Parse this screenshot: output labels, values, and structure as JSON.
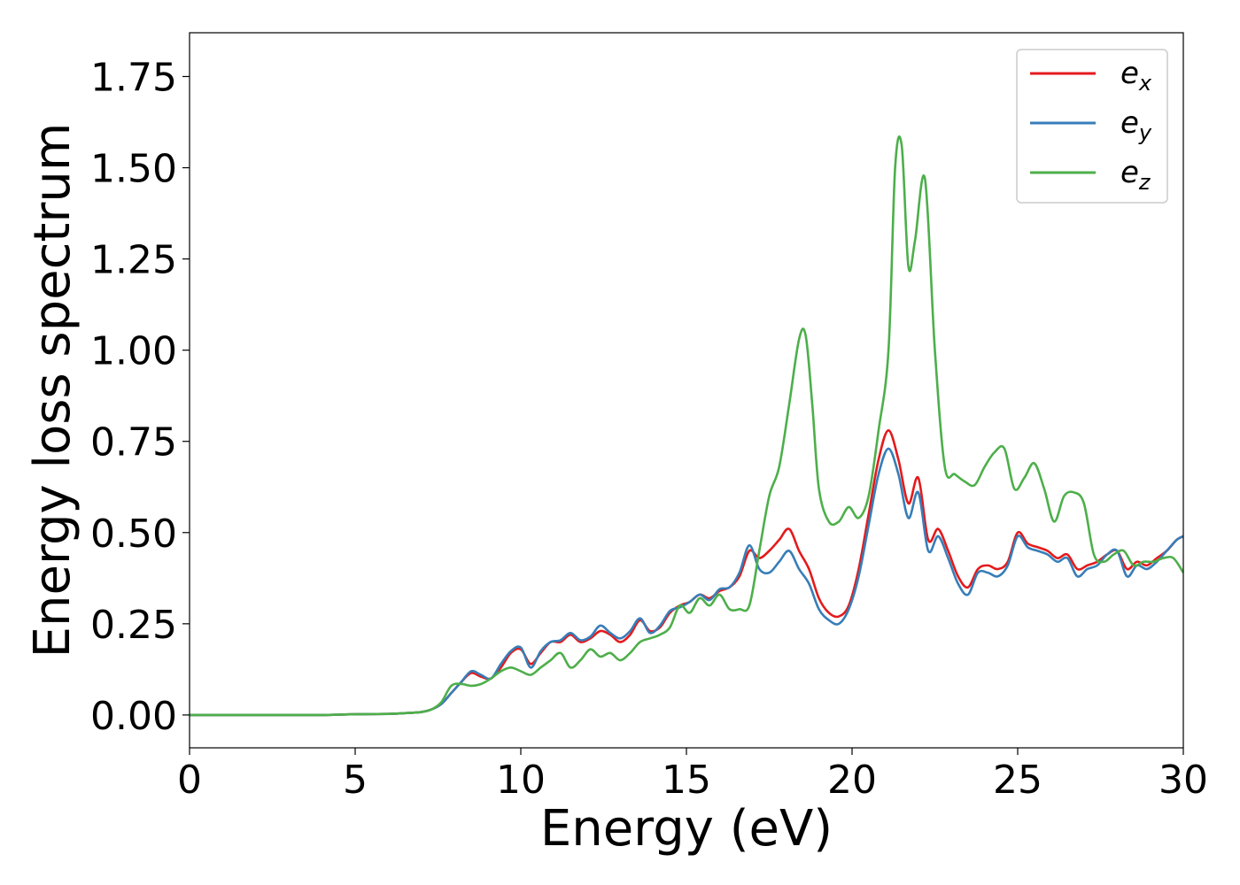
{
  "chart_data": {
    "type": "line",
    "title": "",
    "xlabel": "Energy (eV)",
    "ylabel": "Energy loss spectrum",
    "xlim": [
      0,
      30
    ],
    "ylim": [
      -0.09,
      1.87
    ],
    "xticks": [
      "0",
      "5",
      "10",
      "15",
      "20",
      "25",
      "30"
    ],
    "yticks": [
      "0.00",
      "0.25",
      "0.50",
      "0.75",
      "1.00",
      "1.25",
      "1.50",
      "1.75"
    ],
    "grid": false,
    "legend_position": "top-right",
    "series": [
      {
        "name": "e",
        "subscript": "x",
        "color": "#e41a1c",
        "x": [
          0,
          1,
          2,
          3,
          4,
          5,
          6,
          6.5,
          7.0,
          7.3,
          7.6,
          7.9,
          8.2,
          8.5,
          8.8,
          9.1,
          9.4,
          9.7,
          10.0,
          10.3,
          10.6,
          10.9,
          11.2,
          11.5,
          11.8,
          12.1,
          12.4,
          12.7,
          13.0,
          13.3,
          13.6,
          13.9,
          14.2,
          14.5,
          14.8,
          15.1,
          15.4,
          15.7,
          16.0,
          16.3,
          16.6,
          16.9,
          17.2,
          17.5,
          17.8,
          18.1,
          18.4,
          18.7,
          19.0,
          19.3,
          19.6,
          19.9,
          20.2,
          20.5,
          20.8,
          21.1,
          21.4,
          21.7,
          22.0,
          22.3,
          22.6,
          22.9,
          23.2,
          23.5,
          23.8,
          24.1,
          24.4,
          24.7,
          25.0,
          25.3,
          25.6,
          25.9,
          26.2,
          26.5,
          26.8,
          27.1,
          27.4,
          27.7,
          28.0,
          28.3,
          28.6,
          28.9,
          29.2,
          29.5,
          29.8,
          30
        ],
        "y": [
          0,
          0,
          0,
          0,
          0,
          0.002,
          0.003,
          0.005,
          0.008,
          0.015,
          0.03,
          0.06,
          0.09,
          0.115,
          0.105,
          0.1,
          0.13,
          0.17,
          0.18,
          0.14,
          0.17,
          0.2,
          0.2,
          0.22,
          0.2,
          0.21,
          0.23,
          0.22,
          0.2,
          0.22,
          0.26,
          0.23,
          0.24,
          0.28,
          0.3,
          0.31,
          0.33,
          0.32,
          0.34,
          0.35,
          0.38,
          0.45,
          0.43,
          0.45,
          0.48,
          0.51,
          0.45,
          0.4,
          0.32,
          0.28,
          0.27,
          0.3,
          0.4,
          0.55,
          0.7,
          0.78,
          0.7,
          0.58,
          0.65,
          0.48,
          0.51,
          0.45,
          0.38,
          0.35,
          0.4,
          0.41,
          0.4,
          0.42,
          0.5,
          0.47,
          0.46,
          0.45,
          0.43,
          0.44,
          0.4,
          0.41,
          0.42,
          0.44,
          0.45,
          0.4,
          0.42,
          0.41,
          0.43,
          0.45,
          0.48,
          0.49
        ]
      },
      {
        "name": "e",
        "subscript": "y",
        "color": "#377eb8",
        "x": [
          0,
          1,
          2,
          3,
          4,
          5,
          6,
          6.5,
          7.0,
          7.3,
          7.6,
          7.9,
          8.2,
          8.5,
          8.8,
          9.1,
          9.4,
          9.7,
          10.0,
          10.3,
          10.6,
          10.9,
          11.2,
          11.5,
          11.8,
          12.1,
          12.4,
          12.7,
          13.0,
          13.3,
          13.6,
          13.9,
          14.2,
          14.5,
          14.8,
          15.1,
          15.4,
          15.7,
          16.0,
          16.3,
          16.6,
          16.9,
          17.2,
          17.5,
          17.8,
          18.1,
          18.4,
          18.7,
          19.0,
          19.3,
          19.6,
          19.9,
          20.2,
          20.5,
          20.8,
          21.1,
          21.4,
          21.7,
          22.0,
          22.3,
          22.6,
          22.9,
          23.2,
          23.5,
          23.8,
          24.1,
          24.4,
          24.7,
          25.0,
          25.3,
          25.6,
          25.9,
          26.2,
          26.5,
          26.8,
          27.1,
          27.4,
          27.7,
          28.0,
          28.3,
          28.6,
          28.9,
          29.2,
          29.5,
          29.8,
          30
        ],
        "y": [
          0,
          0,
          0,
          0,
          0,
          0.002,
          0.003,
          0.005,
          0.008,
          0.015,
          0.03,
          0.06,
          0.09,
          0.12,
          0.11,
          0.1,
          0.14,
          0.175,
          0.185,
          0.13,
          0.175,
          0.2,
          0.205,
          0.225,
          0.205,
          0.215,
          0.245,
          0.225,
          0.21,
          0.23,
          0.265,
          0.225,
          0.245,
          0.285,
          0.295,
          0.31,
          0.33,
          0.315,
          0.345,
          0.35,
          0.39,
          0.465,
          0.4,
          0.39,
          0.42,
          0.45,
          0.4,
          0.36,
          0.29,
          0.26,
          0.25,
          0.29,
          0.38,
          0.52,
          0.66,
          0.73,
          0.66,
          0.54,
          0.61,
          0.45,
          0.49,
          0.43,
          0.36,
          0.33,
          0.39,
          0.39,
          0.38,
          0.41,
          0.49,
          0.46,
          0.45,
          0.44,
          0.42,
          0.43,
          0.38,
          0.4,
          0.41,
          0.44,
          0.45,
          0.38,
          0.41,
          0.4,
          0.42,
          0.45,
          0.48,
          0.49
        ]
      },
      {
        "name": "e",
        "subscript": "z",
        "color": "#4daf4a",
        "x": [
          0,
          1,
          2,
          3,
          4,
          5,
          6,
          6.5,
          7.0,
          7.3,
          7.6,
          7.9,
          8.2,
          8.5,
          8.8,
          9.1,
          9.4,
          9.7,
          10.0,
          10.3,
          10.6,
          10.9,
          11.2,
          11.5,
          11.8,
          12.1,
          12.4,
          12.7,
          13.0,
          13.3,
          13.6,
          13.9,
          14.2,
          14.5,
          14.8,
          15.1,
          15.4,
          15.7,
          16.0,
          16.3,
          16.6,
          16.9,
          17.2,
          17.5,
          17.8,
          18.1,
          18.4,
          18.6,
          18.8,
          19.0,
          19.3,
          19.6,
          19.9,
          20.2,
          20.5,
          20.8,
          21.1,
          21.3,
          21.5,
          21.7,
          21.9,
          22.2,
          22.5,
          22.8,
          23.1,
          23.4,
          23.7,
          24.0,
          24.3,
          24.6,
          24.9,
          25.2,
          25.5,
          25.8,
          26.1,
          26.4,
          26.7,
          27.0,
          27.3,
          27.6,
          27.9,
          28.2,
          28.5,
          28.8,
          29.1,
          29.4,
          29.7,
          30
        ],
        "y": [
          0,
          0,
          0,
          0,
          0,
          0.002,
          0.003,
          0.005,
          0.008,
          0.015,
          0.035,
          0.08,
          0.085,
          0.08,
          0.085,
          0.1,
          0.12,
          0.13,
          0.12,
          0.11,
          0.13,
          0.15,
          0.17,
          0.13,
          0.15,
          0.18,
          0.16,
          0.17,
          0.15,
          0.17,
          0.2,
          0.21,
          0.22,
          0.24,
          0.3,
          0.28,
          0.32,
          0.3,
          0.33,
          0.29,
          0.29,
          0.3,
          0.45,
          0.6,
          0.68,
          0.85,
          1.03,
          1.04,
          0.85,
          0.62,
          0.53,
          0.53,
          0.57,
          0.54,
          0.6,
          0.78,
          1.0,
          1.5,
          1.56,
          1.23,
          1.3,
          1.47,
          1.0,
          0.68,
          0.66,
          0.64,
          0.63,
          0.68,
          0.72,
          0.73,
          0.62,
          0.65,
          0.69,
          0.62,
          0.53,
          0.6,
          0.61,
          0.58,
          0.44,
          0.42,
          0.44,
          0.45,
          0.41,
          0.42,
          0.42,
          0.43,
          0.43,
          0.39
        ]
      }
    ]
  }
}
